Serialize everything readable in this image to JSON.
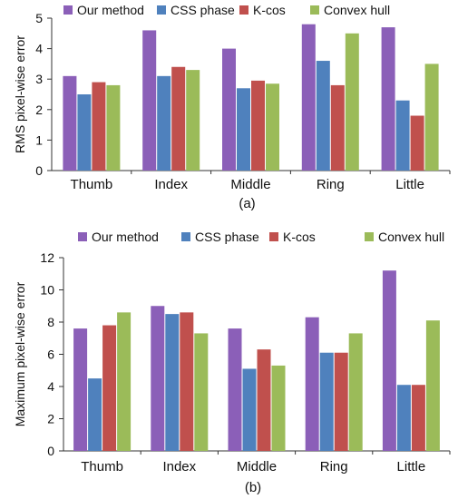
{
  "chart_data": [
    {
      "type": "bar",
      "panel_label": "(a)",
      "ylabel": "RMS pixel-wise error",
      "ylim": [
        0,
        5
      ],
      "yticks": [
        0,
        1,
        2,
        3,
        4,
        5
      ],
      "categories": [
        "Thumb",
        "Index",
        "Middle",
        "Ring",
        "Little"
      ],
      "legend_position": "top",
      "grid": false,
      "series": [
        {
          "name": "Our method",
          "color": "#8b5fb8",
          "values": [
            3.1,
            4.6,
            4.0,
            4.8,
            4.7
          ]
        },
        {
          "name": "CSS phase",
          "color": "#4f81bd",
          "values": [
            2.5,
            3.1,
            2.7,
            3.6,
            2.3
          ]
        },
        {
          "name": "K-cos",
          "color": "#c0504d",
          "values": [
            2.9,
            3.4,
            2.95,
            2.8,
            1.8
          ]
        },
        {
          "name": "Convex hull",
          "color": "#9bbb59",
          "values": [
            2.8,
            3.3,
            2.85,
            4.5,
            3.5
          ]
        }
      ]
    },
    {
      "type": "bar",
      "panel_label": "(b)",
      "ylabel": "Maximum pixel-wise error",
      "ylim": [
        0,
        12
      ],
      "yticks": [
        0,
        2,
        4,
        6,
        8,
        10,
        12
      ],
      "categories": [
        "Thumb",
        "Index",
        "Middle",
        "Ring",
        "Little"
      ],
      "legend_position": "top",
      "grid": false,
      "series": [
        {
          "name": "Our method",
          "color": "#8b5fb8",
          "values": [
            7.6,
            9.0,
            7.6,
            8.3,
            11.2
          ]
        },
        {
          "name": "CSS phase",
          "color": "#4f81bd",
          "values": [
            4.5,
            8.5,
            5.1,
            6.1,
            4.1
          ]
        },
        {
          "name": "K-cos",
          "color": "#c0504d",
          "values": [
            7.8,
            8.6,
            6.3,
            6.1,
            4.1
          ]
        },
        {
          "name": "Convex hull",
          "color": "#9bbb59",
          "values": [
            8.6,
            7.3,
            5.3,
            7.3,
            8.1
          ]
        }
      ]
    }
  ]
}
